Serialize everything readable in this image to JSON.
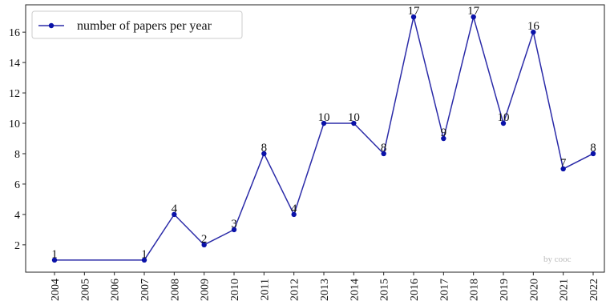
{
  "chart_data": {
    "type": "line",
    "title": "",
    "xlabel": "",
    "ylabel": "",
    "categories": [
      "2004",
      "2005",
      "2006",
      "2007",
      "2008",
      "2009",
      "2010",
      "2011",
      "2012",
      "2013",
      "2014",
      "2015",
      "2016",
      "2017",
      "2018",
      "2019",
      "2020",
      "2021",
      "2022"
    ],
    "series": [
      {
        "name": "number of papers per year",
        "points": [
          {
            "x": "2004",
            "y": 1
          },
          {
            "x": "2007",
            "y": 1
          },
          {
            "x": "2008",
            "y": 4
          },
          {
            "x": "2009",
            "y": 2
          },
          {
            "x": "2010",
            "y": 3
          },
          {
            "x": "2011",
            "y": 8
          },
          {
            "x": "2012",
            "y": 4
          },
          {
            "x": "2013",
            "y": 10
          },
          {
            "x": "2014",
            "y": 10
          },
          {
            "x": "2015",
            "y": 8
          },
          {
            "x": "2016",
            "y": 17
          },
          {
            "x": "2017",
            "y": 9
          },
          {
            "x": "2018",
            "y": 17
          },
          {
            "x": "2019",
            "y": 10
          },
          {
            "x": "2020",
            "y": 16
          },
          {
            "x": "2021",
            "y": 7
          },
          {
            "x": "2022",
            "y": 8
          }
        ]
      }
    ],
    "yticks": [
      2,
      4,
      6,
      8,
      10,
      12,
      14,
      16
    ],
    "ylim": [
      0.2,
      17.8
    ],
    "grid": false,
    "legend": {
      "position": "top-left"
    },
    "annotation": "by cooc",
    "colors": {
      "line": "#2b2ba8",
      "marker": "#0a12a8",
      "axis": "#222222",
      "annotation": "#bbbbbb"
    }
  }
}
